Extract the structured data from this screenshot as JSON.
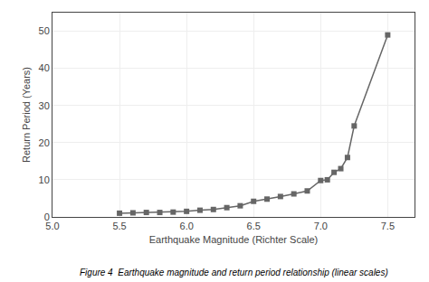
{
  "chart_data": {
    "type": "line",
    "x": [
      5.5,
      5.6,
      5.7,
      5.8,
      5.9,
      6.0,
      6.1,
      6.2,
      6.3,
      6.4,
      6.5,
      6.6,
      6.7,
      6.8,
      6.9,
      7.0,
      7.05,
      7.1,
      7.15,
      7.2,
      7.25,
      7.5
    ],
    "values": [
      1.0,
      1.1,
      1.2,
      1.2,
      1.3,
      1.5,
      1.8,
      2.0,
      2.5,
      3.0,
      4.2,
      4.8,
      5.5,
      6.2,
      7.0,
      9.8,
      10.0,
      12.0,
      13.0,
      16.0,
      24.5,
      49.0
    ],
    "xlabel": "Earthquake Magnitude (Richter Scale)",
    "ylabel": "Return Period (Years)",
    "xlim": [
      5.0,
      7.7
    ],
    "ylim": [
      0,
      55
    ],
    "xticks": [
      {
        "value": 5.0,
        "label": "5.0"
      },
      5.5,
      {
        "value": 6.0,
        "label": "6.0"
      },
      6.5,
      {
        "value": 7.0,
        "label": "7.0"
      },
      7.5
    ],
    "yticks": [
      0,
      10,
      20,
      30,
      40,
      50
    ],
    "color": "#666666",
    "marker": "square",
    "grid": true,
    "annotations": [
      "Figure 4  Earthquake magnitude and return period relationship (linear scales)"
    ]
  }
}
